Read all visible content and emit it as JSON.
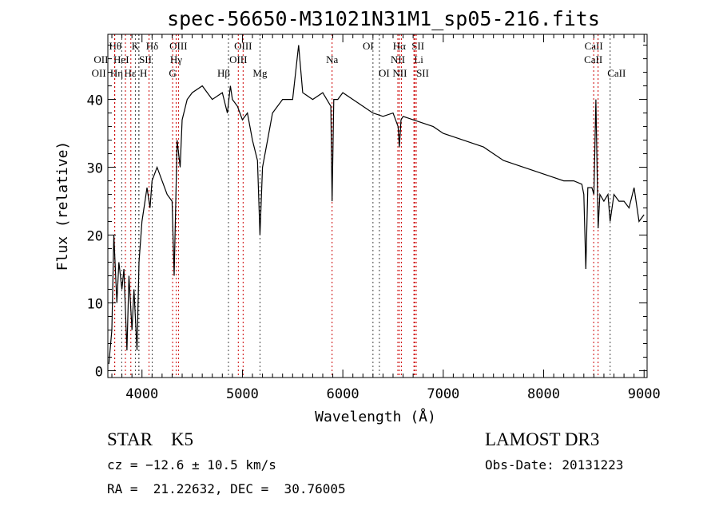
{
  "chart_data": {
    "type": "line",
    "title": "spec-56650-M31021N31M1_sp05-216.fits",
    "xlabel": "Wavelength (Å)",
    "ylabel": "Flux (relative)",
    "xlim": [
      3660,
      9030
    ],
    "ylim": [
      -1,
      49.6
    ],
    "xticks": [
      4000,
      5000,
      6000,
      7000,
      8000,
      9000
    ],
    "yticks": [
      0,
      10,
      20,
      30,
      40
    ],
    "grid": false,
    "series": [
      {
        "name": "spectrum",
        "color": "#000000",
        "x": [
          3670,
          3700,
          3720,
          3750,
          3770,
          3800,
          3820,
          3850,
          3870,
          3900,
          3920,
          3950,
          3970,
          4000,
          4030,
          4050,
          4080,
          4100,
          4150,
          4200,
          4250,
          4300,
          4320,
          4350,
          4380,
          4400,
          4450,
          4500,
          4600,
          4700,
          4800,
          4850,
          4880,
          4900,
          4950,
          5000,
          5050,
          5100,
          5150,
          5175,
          5200,
          5250,
          5300,
          5400,
          5500,
          5560,
          5600,
          5700,
          5800,
          5880,
          5893,
          5910,
          5950,
          6000,
          6100,
          6200,
          6300,
          6400,
          6500,
          6550,
          6563,
          6580,
          6600,
          6700,
          6800,
          6900,
          7000,
          7100,
          7200,
          7300,
          7400,
          7500,
          7600,
          7700,
          7800,
          7900,
          8000,
          8100,
          8200,
          8300,
          8380,
          8400,
          8420,
          8440,
          8480,
          8500,
          8520,
          8542,
          8560,
          8600,
          8640,
          8662,
          8700,
          8750,
          8800,
          8850,
          8900,
          8950,
          9000
        ],
        "y": [
          1,
          6,
          20,
          10,
          16,
          12,
          15,
          3,
          14,
          6,
          12,
          3,
          16,
          22,
          25,
          27,
          24,
          28,
          30,
          28,
          26,
          25,
          14,
          34,
          30,
          37,
          40,
          41,
          42,
          40,
          41,
          38,
          42,
          40,
          39,
          37,
          38,
          34,
          31,
          20,
          30,
          34,
          38,
          40,
          40,
          48,
          41,
          40,
          41,
          39,
          25,
          40,
          40,
          41,
          40,
          39,
          38,
          37.5,
          38,
          36,
          33,
          37,
          37.5,
          37,
          36.5,
          36,
          35,
          34.5,
          34,
          33.5,
          33,
          32,
          31,
          30.5,
          30,
          29.5,
          29,
          28.5,
          28,
          28,
          27.5,
          26,
          15,
          27,
          27,
          26,
          40,
          21,
          26,
          25,
          26,
          22,
          26,
          25,
          25,
          24,
          27,
          22,
          23
        ]
      }
    ],
    "lines": {
      "emission_color": "#cc0000",
      "absorption_color": "#444444",
      "items": [
        {
          "label": "Hθ",
          "wave": 3798,
          "kind": "absorption"
        },
        {
          "label": "K",
          "wave": 3934,
          "kind": "absorption"
        },
        {
          "label": "Hδ",
          "wave": 4102,
          "kind": "absorption"
        },
        {
          "label": "OIII",
          "wave": 4363,
          "kind": "emission"
        },
        {
          "label": "OIII",
          "wave": 5007,
          "kind": "emission"
        },
        {
          "label": "OI",
          "wave": 6300,
          "kind": "absorption"
        },
        {
          "label": "Hα",
          "wave": 6563,
          "kind": "emission"
        },
        {
          "label": "SII",
          "wave": 6716,
          "kind": "emission"
        },
        {
          "label": "CaII",
          "wave": 8498,
          "kind": "emission"
        },
        {
          "label": "OII",
          "wave": 3727,
          "kind": "emission"
        },
        {
          "label": "HeI",
          "wave": 3889,
          "kind": "emission"
        },
        {
          "label": "SII",
          "wave": 4070,
          "kind": "emission"
        },
        {
          "label": "Hγ",
          "wave": 4340,
          "kind": "emission"
        },
        {
          "label": "OIII",
          "wave": 4959,
          "kind": "emission"
        },
        {
          "label": "Na",
          "wave": 5893,
          "kind": "emission"
        },
        {
          "label": "NII",
          "wave": 6548,
          "kind": "emission"
        },
        {
          "label": "Li",
          "wave": 6708,
          "kind": "emission"
        },
        {
          "label": "CaII",
          "wave": 8542,
          "kind": "emission"
        },
        {
          "label": "OII",
          "wave": 3729,
          "kind": "emission"
        },
        {
          "label": "Hε",
          "wave": 3970,
          "kind": "absorption"
        },
        {
          "label": "Hη",
          "wave": 3835,
          "kind": "emission"
        },
        {
          "label": "H",
          "wave": 3968,
          "kind": "absorption"
        },
        {
          "label": "G",
          "wave": 4305,
          "kind": "emission"
        },
        {
          "label": "Hβ",
          "wave": 4861,
          "kind": "absorption"
        },
        {
          "label": "Mg",
          "wave": 5175,
          "kind": "absorption"
        },
        {
          "label": "OI",
          "wave": 6364,
          "kind": "absorption"
        },
        {
          "label": "NII",
          "wave": 6583,
          "kind": "emission"
        },
        {
          "label": "SII",
          "wave": 6731,
          "kind": "emission"
        },
        {
          "label": "CaII",
          "wave": 8662,
          "kind": "absorption"
        }
      ]
    }
  },
  "info": {
    "class": "STAR    K5",
    "survey": "LAMOST DR3",
    "redshift": "cz = −12.6 ± 10.5 km/s",
    "obs_date": "Obs-Date: 20131223",
    "coords": "RA =  21.22632, DEC =  30.76005"
  }
}
